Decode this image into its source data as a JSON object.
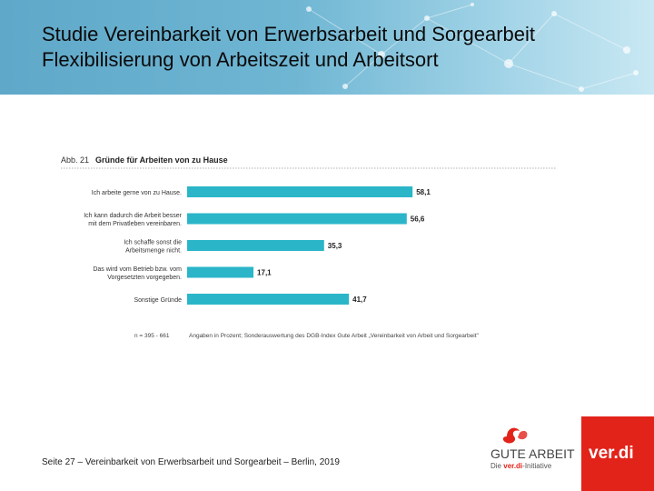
{
  "slide": {
    "title": "Studie Vereinbarkeit von Erwerbsarbeit und Sorgearbeit",
    "subtitle": "Flexibilisierung von Arbeitszeit und Arbeitsort",
    "footer": "Seite 27  –  Vereinbarkeit von Erwerbsarbeit und Sorgearbeit  –  Berlin, 2019",
    "header_color": "#6fb6d3"
  },
  "logos": {
    "gute_arbeit_title": "GUTE ARBEIT",
    "gute_arbeit_sub_prefix": "Die",
    "gute_arbeit_sub_brand": "ver.di",
    "gute_arbeit_sub_suffix": "-Initiative",
    "verdi": "ver.di",
    "verdi_color": "#e2231a"
  },
  "chart_data": {
    "type": "bar",
    "orientation": "horizontal",
    "figure_label": "Abb. 21",
    "title": "Gründe für Arbeiten von zu Hause",
    "categories": [
      [
        "Ich arbeite gerne von zu Hause."
      ],
      [
        "Ich kann dadurch die Arbeit besser",
        "mit dem Privatleben vereinbaren."
      ],
      [
        "Ich schaffe sonst die",
        "Arbeitsmenge nicht."
      ],
      [
        "Das wird vom Betrieb bzw. vom",
        "Vorgesetzten vorgegeben."
      ],
      [
        "Sonstige Gründe"
      ]
    ],
    "values": [
      58.1,
      56.6,
      35.3,
      17.1,
      41.7
    ],
    "value_labels": [
      "58,1",
      "56,6",
      "35,3",
      "17,1",
      "41,7"
    ],
    "xlim": [
      0,
      100
    ],
    "bar_color": "#2bb5c8",
    "grid": false,
    "note_left": "n = 395 - 661",
    "note_right": "Angaben in Prozent; Sonderauswertung des DGB-Index Gute Arbeit „Vereinbarkeit von Arbeit und Sorgearbeit\""
  }
}
